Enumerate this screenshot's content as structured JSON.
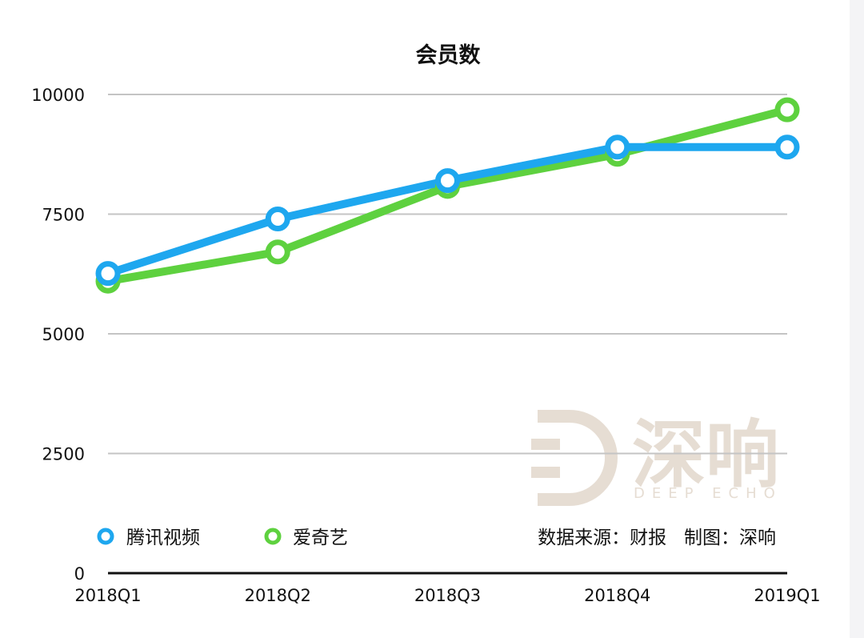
{
  "chart_data": {
    "type": "line",
    "title": "会员数",
    "categories": [
      "2018Q1",
      "2018Q2",
      "2018Q3",
      "2018Q4",
      "2019Q1"
    ],
    "ylim": [
      0,
      10000
    ],
    "yticks": [
      0,
      2500,
      5000,
      7500,
      10000
    ],
    "grid": true,
    "legend_placement": "bottom-left",
    "series": [
      {
        "name": "腾讯视频",
        "color": "#1ea7ef",
        "values": [
          6260,
          7400,
          8200,
          8900,
          8900
        ]
      },
      {
        "name": "爱奇艺",
        "color": "#5ed13f",
        "values": [
          6100,
          6710,
          8080,
          8750,
          9680
        ]
      }
    ]
  },
  "source_note": "数据来源：财报   制图：深响",
  "watermark": {
    "main": "深响",
    "sub": "DEEP ECHO"
  }
}
